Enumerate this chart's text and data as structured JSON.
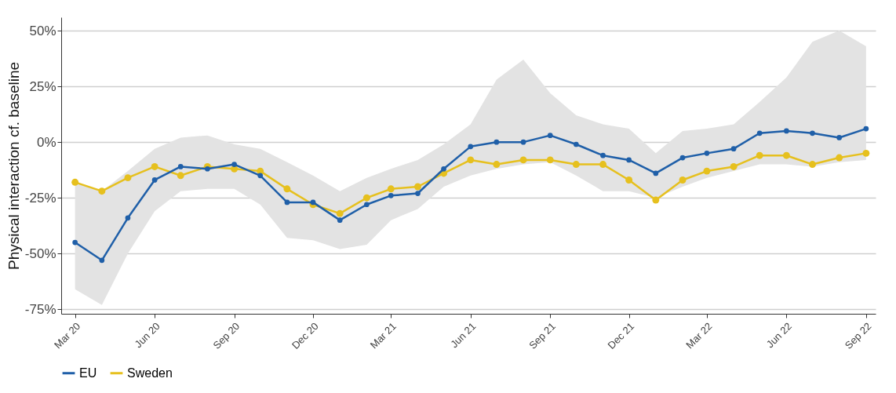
{
  "chart_data": {
    "type": "line",
    "ylabel": "Physical interaction cf. baseline",
    "x": [
      "2020-03",
      "2020-04",
      "2020-05",
      "2020-06",
      "2020-07",
      "2020-08",
      "2020-09",
      "2020-10",
      "2020-11",
      "2020-12",
      "2021-01",
      "2021-02",
      "2021-03",
      "2021-04",
      "2021-05",
      "2021-06",
      "2021-07",
      "2021-08",
      "2021-09",
      "2021-10",
      "2021-11",
      "2021-12",
      "2022-01",
      "2022-02",
      "2022-03",
      "2022-04",
      "2022-05",
      "2022-06",
      "2022-07",
      "2022-08",
      "2022-09"
    ],
    "series": [
      {
        "name": "EU",
        "color": "#1f5fa8",
        "values": [
          -45,
          -53,
          -34,
          -17,
          -11,
          -12,
          -10,
          -15,
          -27,
          -27,
          -35,
          -28,
          -24,
          -23,
          -12,
          -2,
          0,
          0,
          3,
          -1,
          -6,
          -8,
          -14,
          -7,
          -5,
          -3,
          4,
          5,
          4,
          2,
          6
        ],
        "lower": [
          -66,
          -73,
          -50,
          -31,
          -22,
          -21,
          -21,
          -28,
          -43,
          -44,
          -48,
          -46,
          -35,
          -30,
          -20,
          -15,
          -12,
          -10,
          -9,
          -15,
          -22,
          -22,
          -25,
          -20,
          -16,
          -13,
          -10,
          -10,
          -11,
          -9,
          -8
        ],
        "upper": [
          -18,
          -22,
          -13,
          -3,
          2,
          3,
          -1,
          -3,
          -9,
          -15,
          -22,
          -16,
          -12,
          -8,
          -1,
          8,
          28,
          37,
          22,
          12,
          8,
          6,
          -5,
          5,
          6,
          8,
          18,
          29,
          45,
          50,
          43
        ]
      },
      {
        "name": "Sweden",
        "color": "#e6c01e",
        "values": [
          -18,
          -22,
          -16,
          -11,
          -15,
          -11,
          -12,
          -13,
          -21,
          -28,
          -32,
          -25,
          -21,
          -20,
          -14,
          -8,
          -10,
          -8,
          -8,
          -10,
          -10,
          -17,
          -26,
          -17,
          -13,
          -11,
          -6,
          -6,
          -10,
          -7,
          -5
        ]
      }
    ],
    "xlim": [
      "2020-02-14",
      "2022-09-12"
    ],
    "xticks": [
      {
        "value": "2020-03",
        "label": "Mar 20"
      },
      {
        "value": "2020-06",
        "label": "Jun 20"
      },
      {
        "value": "2020-09",
        "label": "Sep 20"
      },
      {
        "value": "2020-12",
        "label": "Dec 20"
      },
      {
        "value": "2021-03",
        "label": "Mar 21"
      },
      {
        "value": "2021-06",
        "label": "Jun 21"
      },
      {
        "value": "2021-09",
        "label": "Sep 21"
      },
      {
        "value": "2021-12",
        "label": "Dec 21"
      },
      {
        "value": "2022-03",
        "label": "Mar 22"
      },
      {
        "value": "2022-06",
        "label": "Jun 22"
      },
      {
        "value": "2022-09",
        "label": "Sep 22"
      }
    ],
    "ylim": [
      -77,
      56
    ],
    "yticks": [
      {
        "value": -75,
        "label": "-75%"
      },
      {
        "value": -50,
        "label": "-50%"
      },
      {
        "value": -25,
        "label": "-25%"
      },
      {
        "value": 0,
        "label": "0%"
      },
      {
        "value": 25,
        "label": "25%"
      },
      {
        "value": 50,
        "label": "50%"
      }
    ],
    "grid": "y",
    "legend": "bottom",
    "marker": "circle",
    "line_style": "solid"
  }
}
